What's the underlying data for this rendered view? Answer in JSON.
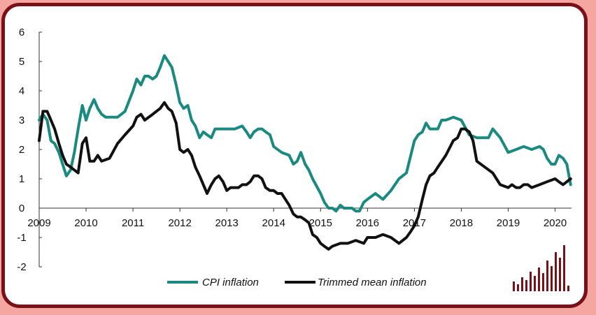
{
  "chart_data": {
    "type": "line",
    "title": "",
    "xlabel": "",
    "ylabel": "",
    "xlim": [
      2009.0,
      2020.35
    ],
    "ylim": [
      -2,
      6
    ],
    "y_ticks": [
      "6",
      "5",
      "4",
      "3",
      "2",
      "1",
      "0",
      "-1",
      "-2"
    ],
    "x_ticks": [
      "2009",
      "2010",
      "2011",
      "2012",
      "2013",
      "2014",
      "2015",
      "2016",
      "2017",
      "2018",
      "2019",
      "2020"
    ],
    "grid": false,
    "legend_position": "bottom-center",
    "series": [
      {
        "name": "CPI inflation",
        "color": "#1a8a80",
        "x": [
          2009.0,
          2009.08,
          2009.17,
          2009.25,
          2009.33,
          2009.42,
          2009.5,
          2009.58,
          2009.67,
          2009.75,
          2009.83,
          2009.92,
          2010.0,
          2010.08,
          2010.17,
          2010.25,
          2010.33,
          2010.42,
          2010.5,
          2010.67,
          2010.83,
          2011.0,
          2011.08,
          2011.17,
          2011.25,
          2011.33,
          2011.42,
          2011.5,
          2011.58,
          2011.67,
          2011.75,
          2011.83,
          2011.92,
          2012.0,
          2012.08,
          2012.17,
          2012.25,
          2012.33,
          2012.42,
          2012.5,
          2012.58,
          2012.67,
          2012.75,
          2012.83,
          2013.0,
          2013.17,
          2013.33,
          2013.42,
          2013.5,
          2013.58,
          2013.67,
          2013.75,
          2013.83,
          2013.92,
          2014.0,
          2014.17,
          2014.33,
          2014.42,
          2014.5,
          2014.58,
          2014.67,
          2014.75,
          2014.83,
          2015.0,
          2015.08,
          2015.17,
          2015.25,
          2015.33,
          2015.42,
          2015.5,
          2015.58,
          2015.67,
          2015.75,
          2015.83,
          2015.92,
          2016.0,
          2016.17,
          2016.33,
          2016.5,
          2016.67,
          2016.83,
          2017.0,
          2017.08,
          2017.17,
          2017.25,
          2017.33,
          2017.5,
          2017.58,
          2017.67,
          2017.83,
          2018.0,
          2018.17,
          2018.33,
          2018.5,
          2018.58,
          2018.67,
          2018.83,
          2019.0,
          2019.17,
          2019.33,
          2019.5,
          2019.67,
          2019.75,
          2019.83,
          2019.92,
          2020.0,
          2020.08,
          2020.17,
          2020.25,
          2020.33
        ],
        "values": [
          3.0,
          3.2,
          3.0,
          2.3,
          2.2,
          1.9,
          1.5,
          1.1,
          1.3,
          1.9,
          2.7,
          3.5,
          3.0,
          3.4,
          3.7,
          3.4,
          3.2,
          3.1,
          3.1,
          3.1,
          3.3,
          4.0,
          4.4,
          4.2,
          4.5,
          4.5,
          4.4,
          4.5,
          4.8,
          5.2,
          5.0,
          4.8,
          4.2,
          3.6,
          3.4,
          3.5,
          3.0,
          2.8,
          2.4,
          2.6,
          2.5,
          2.4,
          2.7,
          2.7,
          2.7,
          2.7,
          2.8,
          2.6,
          2.4,
          2.6,
          2.7,
          2.7,
          2.6,
          2.5,
          2.1,
          1.9,
          1.8,
          1.5,
          1.6,
          1.9,
          1.5,
          1.3,
          1.0,
          0.5,
          0.2,
          0.0,
          0.0,
          -0.1,
          0.1,
          0.0,
          0.0,
          0.0,
          -0.1,
          -0.1,
          0.2,
          0.3,
          0.5,
          0.3,
          0.6,
          1.0,
          1.2,
          2.3,
          2.5,
          2.6,
          2.9,
          2.7,
          2.7,
          3.0,
          3.0,
          3.1,
          3.0,
          2.5,
          2.4,
          2.4,
          2.4,
          2.7,
          2.4,
          1.9,
          2.0,
          2.1,
          2.0,
          2.1,
          2.0,
          1.7,
          1.5,
          1.5,
          1.8,
          1.7,
          1.5,
          0.8
        ]
      },
      {
        "name": "Trimmed mean inflation",
        "color": "#111111",
        "x": [
          2009.0,
          2009.08,
          2009.17,
          2009.25,
          2009.33,
          2009.42,
          2009.5,
          2009.58,
          2009.67,
          2009.75,
          2009.83,
          2009.92,
          2010.0,
          2010.08,
          2010.17,
          2010.25,
          2010.33,
          2010.5,
          2010.67,
          2010.83,
          2011.0,
          2011.08,
          2011.17,
          2011.25,
          2011.42,
          2011.58,
          2011.67,
          2011.75,
          2011.83,
          2011.92,
          2012.0,
          2012.08,
          2012.17,
          2012.25,
          2012.33,
          2012.42,
          2012.5,
          2012.58,
          2012.67,
          2012.75,
          2012.83,
          2012.92,
          2013.0,
          2013.08,
          2013.17,
          2013.25,
          2013.33,
          2013.42,
          2013.5,
          2013.58,
          2013.67,
          2013.75,
          2013.83,
          2013.92,
          2014.0,
          2014.08,
          2014.17,
          2014.25,
          2014.33,
          2014.42,
          2014.5,
          2014.58,
          2014.67,
          2014.75,
          2014.83,
          2014.92,
          2015.0,
          2015.08,
          2015.17,
          2015.25,
          2015.42,
          2015.58,
          2015.75,
          2015.92,
          2016.0,
          2016.17,
          2016.33,
          2016.5,
          2016.67,
          2016.83,
          2016.92,
          2017.0,
          2017.08,
          2017.17,
          2017.25,
          2017.33,
          2017.42,
          2017.5,
          2017.67,
          2017.83,
          2017.92,
          2018.0,
          2018.08,
          2018.17,
          2018.25,
          2018.33,
          2018.5,
          2018.67,
          2018.75,
          2018.83,
          2019.0,
          2019.08,
          2019.17,
          2019.25,
          2019.33,
          2019.42,
          2019.5,
          2019.67,
          2019.83,
          2020.0,
          2020.08,
          2020.17,
          2020.25,
          2020.33
        ],
        "values": [
          2.3,
          3.3,
          3.3,
          3.0,
          2.7,
          2.2,
          1.8,
          1.5,
          1.4,
          1.3,
          1.2,
          2.2,
          2.4,
          1.6,
          1.6,
          1.8,
          1.6,
          1.7,
          2.2,
          2.5,
          2.8,
          3.1,
          3.2,
          3.0,
          3.2,
          3.4,
          3.6,
          3.4,
          3.3,
          2.9,
          2.0,
          1.9,
          2.0,
          1.8,
          1.4,
          1.1,
          0.8,
          0.5,
          0.8,
          1.0,
          1.1,
          0.9,
          0.6,
          0.7,
          0.7,
          0.7,
          0.8,
          0.8,
          0.9,
          1.1,
          1.1,
          1.0,
          0.7,
          0.6,
          0.6,
          0.5,
          0.5,
          0.3,
          0.1,
          -0.2,
          -0.3,
          -0.3,
          -0.4,
          -0.5,
          -0.9,
          -1.0,
          -1.2,
          -1.3,
          -1.4,
          -1.3,
          -1.2,
          -1.2,
          -1.1,
          -1.2,
          -1.0,
          -1.0,
          -0.9,
          -1.0,
          -1.2,
          -1.0,
          -0.8,
          -0.6,
          -0.3,
          0.3,
          0.8,
          1.1,
          1.2,
          1.4,
          1.8,
          2.3,
          2.4,
          2.7,
          2.7,
          2.6,
          2.3,
          1.6,
          1.4,
          1.2,
          1.0,
          0.8,
          0.7,
          0.8,
          0.7,
          0.7,
          0.8,
          0.8,
          0.7,
          0.8,
          0.9,
          1.0,
          0.9,
          0.8,
          0.9,
          1.0
        ]
      }
    ]
  },
  "logo_name": "bar-chart-logo-icon"
}
